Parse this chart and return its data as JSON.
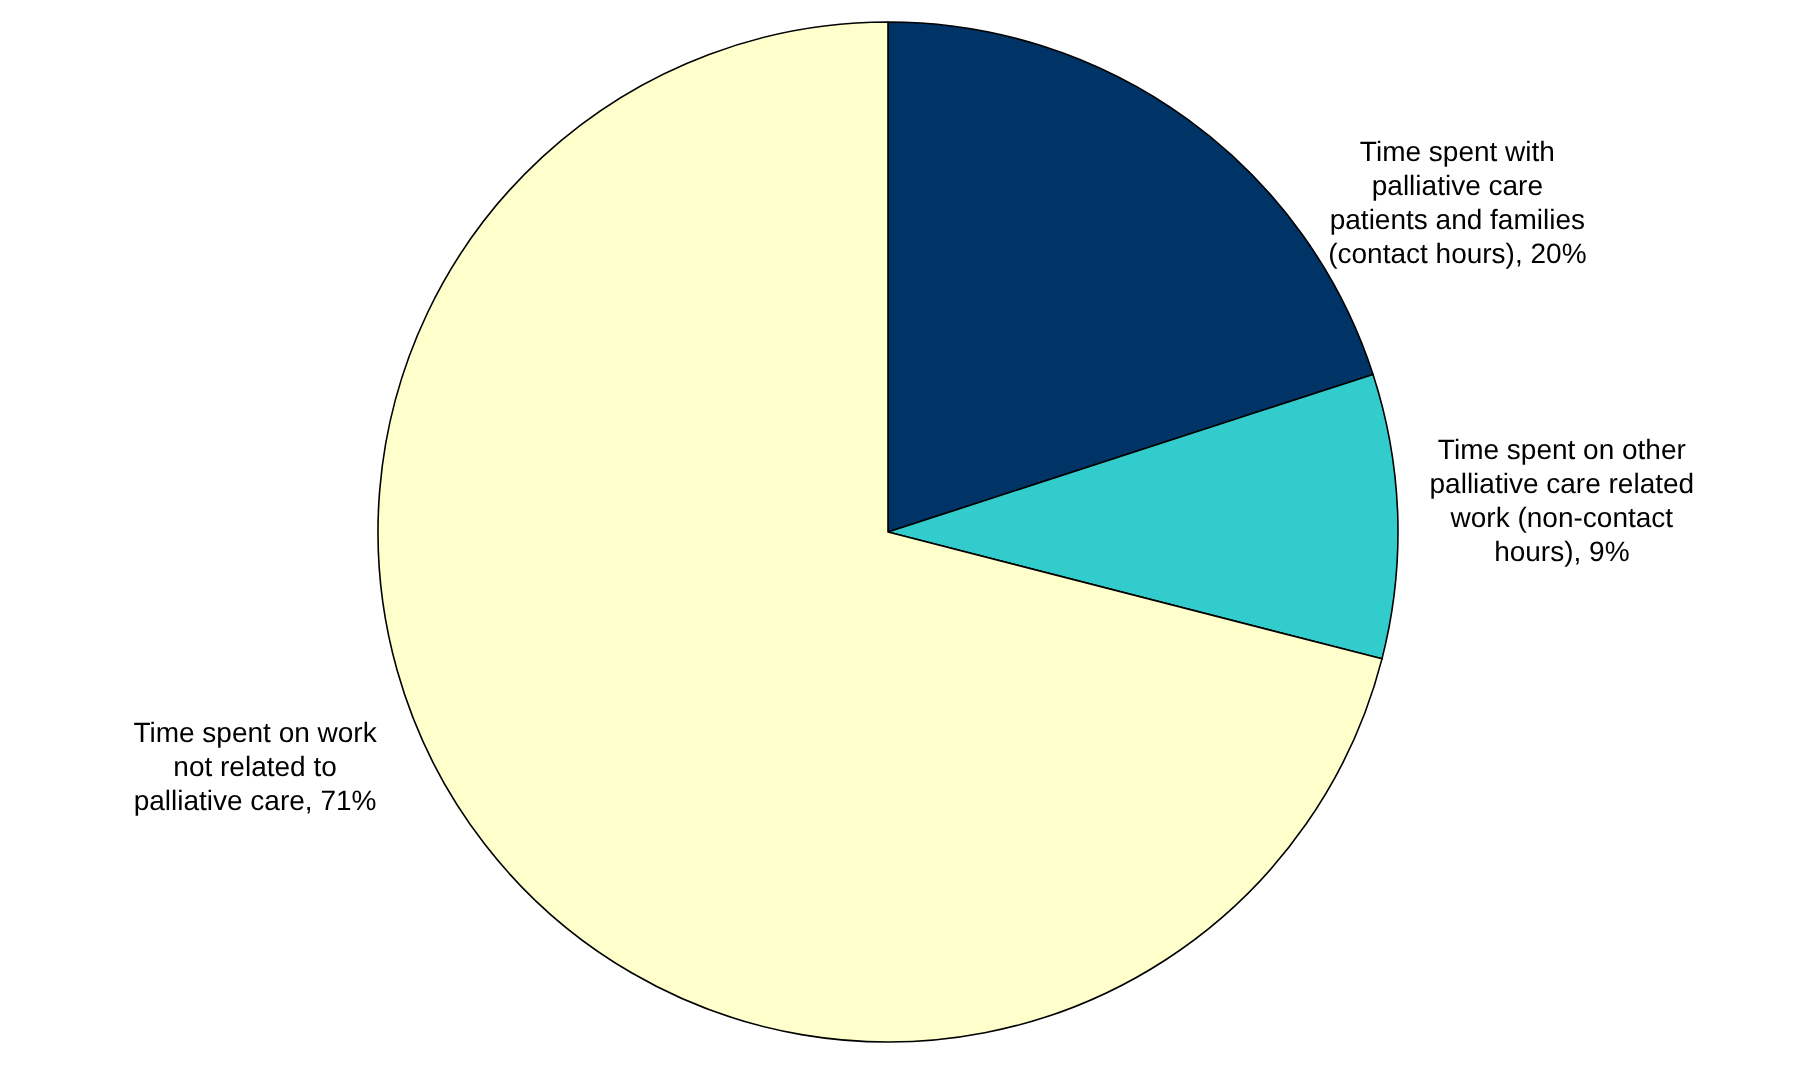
{
  "chart_data": {
    "type": "pie",
    "categories": [
      "Time spent with palliative care patients and families (contact hours)",
      "Time spent on other palliative care related work (non-contact hours)",
      "Time spent on work not related to palliative care"
    ],
    "values": [
      20,
      9,
      71
    ],
    "value_labels": [
      ", 20%",
      ", 9%",
      ", 71%"
    ],
    "colors": [
      "#003366",
      "#33cccc",
      "#ffffcc"
    ]
  }
}
